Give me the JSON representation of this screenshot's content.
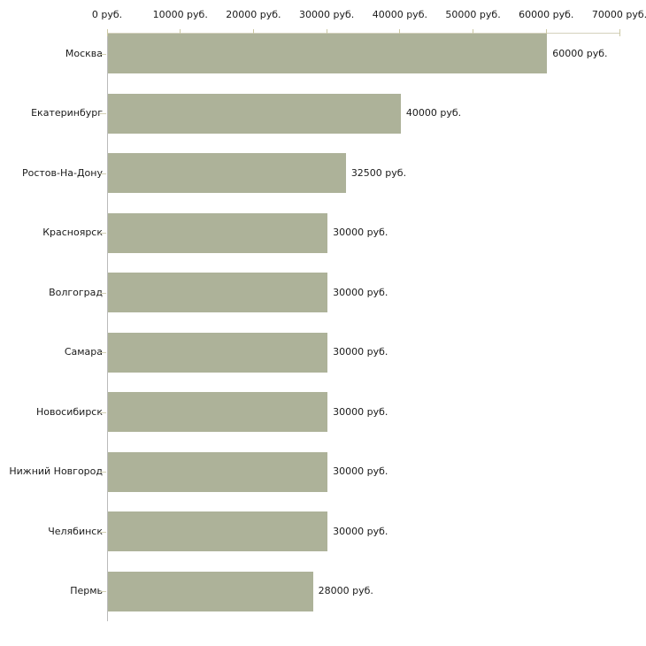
{
  "chart_data": {
    "type": "bar",
    "orientation": "horizontal",
    "title": "",
    "xlabel": "",
    "ylabel": "",
    "unit": "руб.",
    "xlim": [
      0,
      70000
    ],
    "grid": false,
    "legend": null,
    "x_tick_values": [
      0,
      10000,
      20000,
      30000,
      40000,
      50000,
      60000,
      70000
    ],
    "x_tick_labels": [
      "0 руб.",
      "10000 руб.",
      "20000 руб.",
      "30000 руб.",
      "40000 руб.",
      "50000 руб.",
      "60000 руб.",
      "70000 руб."
    ],
    "categories": [
      "Москва",
      "Екатеринбург",
      "Ростов-На-Дону",
      "Красноярск",
      "Волгоград",
      "Самара",
      "Новосибирск",
      "Нижний Новгород",
      "Челябинск",
      "Пермь"
    ],
    "values": [
      60000,
      40000,
      32500,
      30000,
      30000,
      30000,
      30000,
      30000,
      30000,
      28000
    ],
    "bar_labels": [
      "60000 руб.",
      "40000 руб.",
      "32500 руб.",
      "30000 руб.",
      "30000 руб.",
      "30000 руб.",
      "30000 руб.",
      "30000 руб.",
      "30000 руб.",
      "28000 руб."
    ],
    "colors": {
      "bar": "#adb299",
      "x_axis_line": "#d4d1bd",
      "y_axis_line": "#bbbbbb",
      "tick_mark": "#ccc8a4",
      "text": "#1a1a1a",
      "background": "#ffffff"
    }
  }
}
